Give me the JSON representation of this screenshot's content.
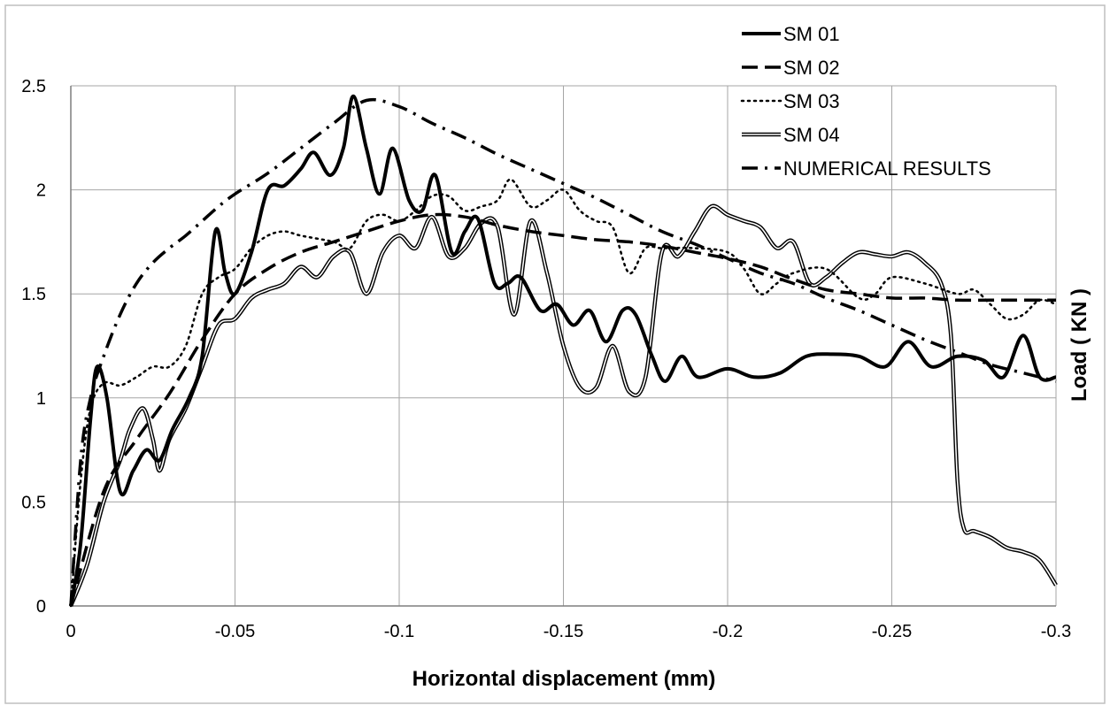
{
  "chart_data": {
    "type": "line",
    "title": "",
    "xlabel": "Horizontal displacement (mm)",
    "ylabel": "Load ( KN )",
    "xlim": [
      0,
      -0.3
    ],
    "ylim": [
      0,
      2.5
    ],
    "x_ticks": [
      0,
      -0.05,
      -0.1,
      -0.15,
      -0.2,
      -0.25,
      -0.3
    ],
    "x_tick_labels": [
      "0",
      "-0.05",
      "-0.1",
      "-0.15",
      "-0.2",
      "-0.25",
      "-0.3"
    ],
    "y_ticks": [
      0,
      0.5,
      1,
      1.5,
      2,
      2.5
    ],
    "y_tick_labels": [
      "0",
      "0.5",
      "1",
      "1.5",
      "2",
      "2.5"
    ],
    "grid": true,
    "legend_position": "top-right",
    "series": [
      {
        "name": "SM 01",
        "style": "solid-thick",
        "color": "#000000",
        "points": [
          [
            0,
            0
          ],
          [
            -0.003,
            0.3
          ],
          [
            -0.006,
            0.9
          ],
          [
            -0.008,
            1.15
          ],
          [
            -0.011,
            1.0
          ],
          [
            -0.015,
            0.55
          ],
          [
            -0.019,
            0.65
          ],
          [
            -0.023,
            0.75
          ],
          [
            -0.027,
            0.7
          ],
          [
            -0.031,
            0.85
          ],
          [
            -0.036,
            1.0
          ],
          [
            -0.04,
            1.2
          ],
          [
            -0.044,
            1.8
          ],
          [
            -0.047,
            1.6
          ],
          [
            -0.05,
            1.5
          ],
          [
            -0.055,
            1.7
          ],
          [
            -0.06,
            2.0
          ],
          [
            -0.065,
            2.02
          ],
          [
            -0.07,
            2.1
          ],
          [
            -0.074,
            2.18
          ],
          [
            -0.079,
            2.07
          ],
          [
            -0.083,
            2.2
          ],
          [
            -0.086,
            2.45
          ],
          [
            -0.09,
            2.2
          ],
          [
            -0.094,
            1.98
          ],
          [
            -0.098,
            2.2
          ],
          [
            -0.103,
            1.95
          ],
          [
            -0.107,
            1.9
          ],
          [
            -0.111,
            2.07
          ],
          [
            -0.116,
            1.7
          ],
          [
            -0.12,
            1.8
          ],
          [
            -0.124,
            1.86
          ],
          [
            -0.129,
            1.55
          ],
          [
            -0.133,
            1.55
          ],
          [
            -0.137,
            1.58
          ],
          [
            -0.143,
            1.42
          ],
          [
            -0.148,
            1.45
          ],
          [
            -0.153,
            1.35
          ],
          [
            -0.158,
            1.42
          ],
          [
            -0.163,
            1.27
          ],
          [
            -0.168,
            1.42
          ],
          [
            -0.172,
            1.4
          ],
          [
            -0.177,
            1.2
          ],
          [
            -0.181,
            1.08
          ],
          [
            -0.186,
            1.2
          ],
          [
            -0.191,
            1.1
          ],
          [
            -0.2,
            1.14
          ],
          [
            -0.208,
            1.1
          ],
          [
            -0.216,
            1.12
          ],
          [
            -0.224,
            1.2
          ],
          [
            -0.232,
            1.21
          ],
          [
            -0.24,
            1.2
          ],
          [
            -0.248,
            1.15
          ],
          [
            -0.255,
            1.27
          ],
          [
            -0.262,
            1.15
          ],
          [
            -0.27,
            1.2
          ],
          [
            -0.278,
            1.18
          ],
          [
            -0.284,
            1.1
          ],
          [
            -0.29,
            1.3
          ],
          [
            -0.295,
            1.1
          ],
          [
            -0.3,
            1.1
          ]
        ]
      },
      {
        "name": "SM 02",
        "style": "dashed",
        "color": "#000000",
        "points": [
          [
            0,
            0
          ],
          [
            -0.01,
            0.55
          ],
          [
            -0.02,
            0.8
          ],
          [
            -0.03,
            1.02
          ],
          [
            -0.04,
            1.28
          ],
          [
            -0.05,
            1.5
          ],
          [
            -0.06,
            1.62
          ],
          [
            -0.07,
            1.7
          ],
          [
            -0.08,
            1.75
          ],
          [
            -0.09,
            1.8
          ],
          [
            -0.1,
            1.85
          ],
          [
            -0.11,
            1.88
          ],
          [
            -0.12,
            1.87
          ],
          [
            -0.13,
            1.83
          ],
          [
            -0.14,
            1.8
          ],
          [
            -0.15,
            1.78
          ],
          [
            -0.16,
            1.76
          ],
          [
            -0.17,
            1.75
          ],
          [
            -0.18,
            1.73
          ],
          [
            -0.19,
            1.7
          ],
          [
            -0.2,
            1.67
          ],
          [
            -0.21,
            1.63
          ],
          [
            -0.22,
            1.57
          ],
          [
            -0.23,
            1.52
          ],
          [
            -0.24,
            1.5
          ],
          [
            -0.25,
            1.48
          ],
          [
            -0.26,
            1.48
          ],
          [
            -0.27,
            1.47
          ],
          [
            -0.28,
            1.47
          ],
          [
            -0.29,
            1.47
          ],
          [
            -0.3,
            1.47
          ]
        ]
      },
      {
        "name": "SM 03",
        "style": "dotted",
        "color": "#000000",
        "points": [
          [
            0,
            0
          ],
          [
            -0.003,
            0.6
          ],
          [
            -0.006,
            0.95
          ],
          [
            -0.01,
            1.07
          ],
          [
            -0.015,
            1.06
          ],
          [
            -0.02,
            1.1
          ],
          [
            -0.025,
            1.15
          ],
          [
            -0.03,
            1.15
          ],
          [
            -0.035,
            1.25
          ],
          [
            -0.04,
            1.5
          ],
          [
            -0.045,
            1.58
          ],
          [
            -0.05,
            1.62
          ],
          [
            -0.055,
            1.72
          ],
          [
            -0.06,
            1.78
          ],
          [
            -0.065,
            1.8
          ],
          [
            -0.07,
            1.78
          ],
          [
            -0.08,
            1.75
          ],
          [
            -0.085,
            1.72
          ],
          [
            -0.09,
            1.85
          ],
          [
            -0.095,
            1.88
          ],
          [
            -0.1,
            1.85
          ],
          [
            -0.105,
            1.9
          ],
          [
            -0.11,
            1.97
          ],
          [
            -0.115,
            1.97
          ],
          [
            -0.12,
            1.9
          ],
          [
            -0.125,
            1.92
          ],
          [
            -0.13,
            1.95
          ],
          [
            -0.134,
            2.05
          ],
          [
            -0.14,
            1.92
          ],
          [
            -0.145,
            1.95
          ],
          [
            -0.15,
            2.0
          ],
          [
            -0.155,
            1.9
          ],
          [
            -0.16,
            1.85
          ],
          [
            -0.165,
            1.82
          ],
          [
            -0.17,
            1.6
          ],
          [
            -0.175,
            1.72
          ],
          [
            -0.18,
            1.72
          ],
          [
            -0.19,
            1.72
          ],
          [
            -0.2,
            1.7
          ],
          [
            -0.205,
            1.62
          ],
          [
            -0.21,
            1.5
          ],
          [
            -0.215,
            1.55
          ],
          [
            -0.22,
            1.6
          ],
          [
            -0.23,
            1.62
          ],
          [
            -0.24,
            1.48
          ],
          [
            -0.245,
            1.5
          ],
          [
            -0.25,
            1.58
          ],
          [
            -0.26,
            1.55
          ],
          [
            -0.27,
            1.5
          ],
          [
            -0.275,
            1.52
          ],
          [
            -0.28,
            1.45
          ],
          [
            -0.285,
            1.38
          ],
          [
            -0.29,
            1.4
          ],
          [
            -0.295,
            1.47
          ],
          [
            -0.3,
            1.45
          ]
        ]
      },
      {
        "name": "SM 04",
        "style": "double",
        "color": "#000000",
        "points": [
          [
            0,
            0
          ],
          [
            -0.005,
            0.2
          ],
          [
            -0.01,
            0.5
          ],
          [
            -0.015,
            0.7
          ],
          [
            -0.018,
            0.85
          ],
          [
            -0.022,
            0.95
          ],
          [
            -0.025,
            0.8
          ],
          [
            -0.027,
            0.65
          ],
          [
            -0.03,
            0.8
          ],
          [
            -0.035,
            0.95
          ],
          [
            -0.04,
            1.15
          ],
          [
            -0.045,
            1.35
          ],
          [
            -0.05,
            1.38
          ],
          [
            -0.055,
            1.48
          ],
          [
            -0.06,
            1.52
          ],
          [
            -0.065,
            1.55
          ],
          [
            -0.07,
            1.63
          ],
          [
            -0.075,
            1.58
          ],
          [
            -0.08,
            1.68
          ],
          [
            -0.085,
            1.7
          ],
          [
            -0.09,
            1.5
          ],
          [
            -0.095,
            1.7
          ],
          [
            -0.1,
            1.78
          ],
          [
            -0.105,
            1.72
          ],
          [
            -0.11,
            1.87
          ],
          [
            -0.115,
            1.68
          ],
          [
            -0.12,
            1.72
          ],
          [
            -0.125,
            1.84
          ],
          [
            -0.13,
            1.82
          ],
          [
            -0.135,
            1.4
          ],
          [
            -0.14,
            1.85
          ],
          [
            -0.145,
            1.6
          ],
          [
            -0.15,
            1.25
          ],
          [
            -0.155,
            1.05
          ],
          [
            -0.16,
            1.05
          ],
          [
            -0.165,
            1.25
          ],
          [
            -0.17,
            1.03
          ],
          [
            -0.175,
            1.1
          ],
          [
            -0.18,
            1.7
          ],
          [
            -0.185,
            1.68
          ],
          [
            -0.19,
            1.8
          ],
          [
            -0.195,
            1.92
          ],
          [
            -0.2,
            1.88
          ],
          [
            -0.205,
            1.85
          ],
          [
            -0.21,
            1.82
          ],
          [
            -0.215,
            1.72
          ],
          [
            -0.22,
            1.75
          ],
          [
            -0.225,
            1.55
          ],
          [
            -0.23,
            1.58
          ],
          [
            -0.235,
            1.65
          ],
          [
            -0.24,
            1.7
          ],
          [
            -0.245,
            1.69
          ],
          [
            -0.25,
            1.68
          ],
          [
            -0.255,
            1.7
          ],
          [
            -0.26,
            1.65
          ],
          [
            -0.265,
            1.55
          ],
          [
            -0.268,
            1.3
          ],
          [
            -0.27,
            0.6
          ],
          [
            -0.272,
            0.37
          ],
          [
            -0.275,
            0.36
          ],
          [
            -0.28,
            0.33
          ],
          [
            -0.285,
            0.28
          ],
          [
            -0.29,
            0.26
          ],
          [
            -0.295,
            0.22
          ],
          [
            -0.3,
            0.1
          ]
        ]
      },
      {
        "name": "NUMERICAL RESULTS",
        "style": "dash-dot",
        "color": "#000000",
        "points": [
          [
            0,
            0
          ],
          [
            -0.003,
            0.7
          ],
          [
            -0.006,
            1.0
          ],
          [
            -0.01,
            1.2
          ],
          [
            -0.015,
            1.4
          ],
          [
            -0.02,
            1.55
          ],
          [
            -0.025,
            1.65
          ],
          [
            -0.03,
            1.72
          ],
          [
            -0.035,
            1.78
          ],
          [
            -0.04,
            1.85
          ],
          [
            -0.045,
            1.92
          ],
          [
            -0.05,
            1.98
          ],
          [
            -0.06,
            2.08
          ],
          [
            -0.07,
            2.2
          ],
          [
            -0.08,
            2.32
          ],
          [
            -0.09,
            2.43
          ],
          [
            -0.1,
            2.4
          ],
          [
            -0.11,
            2.32
          ],
          [
            -0.12,
            2.25
          ],
          [
            -0.13,
            2.17
          ],
          [
            -0.14,
            2.1
          ],
          [
            -0.15,
            2.03
          ],
          [
            -0.16,
            1.96
          ],
          [
            -0.17,
            1.88
          ],
          [
            -0.18,
            1.8
          ],
          [
            -0.19,
            1.74
          ],
          [
            -0.2,
            1.67
          ],
          [
            -0.21,
            1.6
          ],
          [
            -0.22,
            1.55
          ],
          [
            -0.23,
            1.48
          ],
          [
            -0.24,
            1.42
          ],
          [
            -0.25,
            1.35
          ],
          [
            -0.26,
            1.28
          ],
          [
            -0.27,
            1.22
          ],
          [
            -0.28,
            1.16
          ],
          [
            -0.29,
            1.12
          ],
          [
            -0.3,
            1.08
          ]
        ]
      }
    ]
  }
}
